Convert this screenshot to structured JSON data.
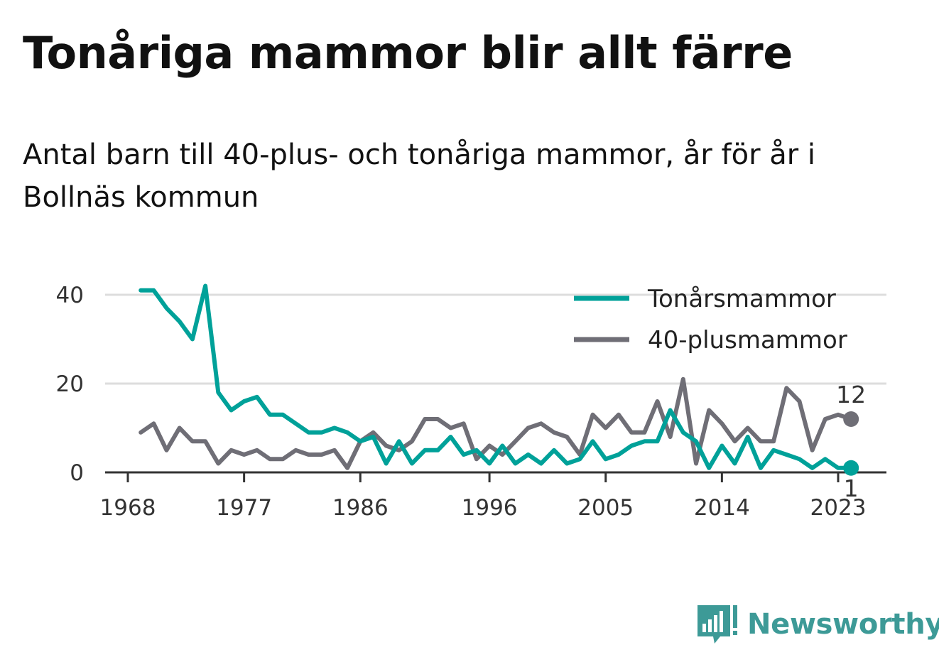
{
  "title": "Tonåriga mammor blir allt färre",
  "subtitle": "Antal barn till 40-plus- och tonåriga mammor, år för år i Bollnäs kommun",
  "brand": {
    "name": "Newsworthy",
    "icon": "newsworthy-logo-icon",
    "color": "#3d9a97"
  },
  "chart_data": {
    "type": "line",
    "title": "Tonåriga mammor blir allt färre",
    "subtitle": "Antal barn till 40-plus- och tonåriga mammor, år för år i Bollnäs kommun",
    "xlabel": "",
    "ylabel": "",
    "x_ticks": [
      1968,
      1977,
      1986,
      1996,
      2005,
      2014,
      2023
    ],
    "y_ticks": [
      0,
      20,
      40
    ],
    "xlim": [
      1968,
      2024
    ],
    "ylim": [
      0,
      42
    ],
    "grid": true,
    "legend_position": "top-right",
    "x": [
      1969,
      1970,
      1971,
      1972,
      1973,
      1974,
      1975,
      1976,
      1977,
      1978,
      1979,
      1980,
      1981,
      1982,
      1983,
      1984,
      1985,
      1986,
      1987,
      1988,
      1989,
      1990,
      1991,
      1992,
      1993,
      1994,
      1995,
      1996,
      1997,
      1998,
      1999,
      2000,
      2001,
      2002,
      2003,
      2004,
      2005,
      2006,
      2007,
      2008,
      2009,
      2010,
      2011,
      2012,
      2013,
      2014,
      2015,
      2016,
      2017,
      2018,
      2019,
      2020,
      2021,
      2022,
      2023,
      2024
    ],
    "series": [
      {
        "name": "Tonårsmammor",
        "color": "#00a199",
        "values": [
          41,
          41,
          37,
          34,
          30,
          42,
          18,
          14,
          16,
          17,
          13,
          13,
          11,
          9,
          9,
          10,
          9,
          7,
          8,
          2,
          7,
          2,
          5,
          5,
          8,
          4,
          5,
          2,
          6,
          2,
          4,
          2,
          5,
          2,
          3,
          7,
          3,
          4,
          6,
          7,
          7,
          14,
          9,
          7,
          1,
          6,
          2,
          8,
          1,
          5,
          4,
          3,
          1,
          3,
          1,
          1
        ],
        "end_label": "1"
      },
      {
        "name": "40-plusmammor",
        "color": "#6f6e76",
        "values": [
          9,
          11,
          5,
          10,
          7,
          7,
          2,
          5,
          4,
          5,
          3,
          3,
          5,
          4,
          4,
          5,
          1,
          7,
          9,
          6,
          5,
          7,
          12,
          12,
          10,
          11,
          3,
          6,
          4,
          7,
          10,
          11,
          9,
          8,
          4,
          13,
          10,
          13,
          9,
          9,
          16,
          8,
          21,
          2,
          14,
          11,
          7,
          10,
          7,
          7,
          19,
          16,
          5,
          12,
          13,
          12
        ],
        "end_label": "12"
      }
    ]
  }
}
